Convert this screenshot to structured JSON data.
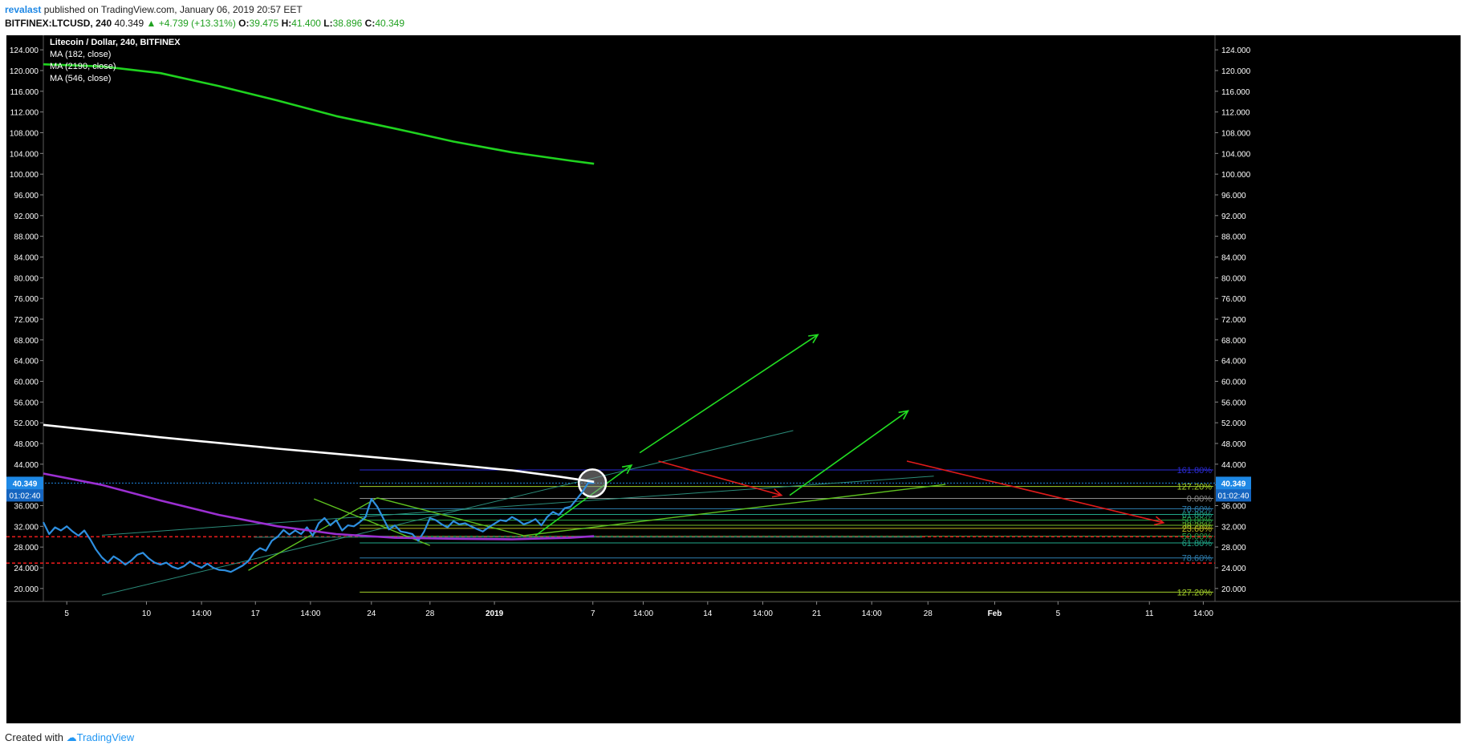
{
  "publish": {
    "username": "revalast",
    "rest": "published on TradingView.com, January 06, 2019 20:57 EET"
  },
  "ohlc": {
    "symbol": "BITFINEX:LTCUSD, 240",
    "last": "40.349",
    "change": "+4.739 (+13.31%)",
    "o_label": "O:",
    "o": "39.475",
    "h_label": "H:",
    "h": "41.400",
    "l_label": "L:",
    "l": "38.896",
    "c_label": "C:",
    "c": "40.349"
  },
  "legend": {
    "title": "Litecoin / Dollar, 240, BITFINEX",
    "studies": [
      "MA (182, close)",
      "MA (2190, close)",
      "MA (546, close)"
    ]
  },
  "footer": {
    "created_with": "Created with",
    "brand": "TradingView"
  },
  "colors": {
    "background": "#000000",
    "price": "#2e8fe0",
    "ma_green": "#1fd31f",
    "ma_white": "#ffffff",
    "ma_purple": "#9b2fd1",
    "arrow_green": "#22dd22",
    "arrow_red": "#e01b1b",
    "support_red": "#e01b1b",
    "last_price_badge": "#1e88e5"
  },
  "chart_data": {
    "type": "line",
    "title": "Litecoin / Dollar, 240, BITFINEX",
    "ylim": [
      17.5,
      126.5
    ],
    "y_ticks": [
      "124.000",
      "120.000",
      "116.000",
      "112.000",
      "108.000",
      "104.000",
      "100.000",
      "96.000",
      "92.000",
      "88.000",
      "84.000",
      "80.000",
      "76.000",
      "72.000",
      "68.000",
      "64.000",
      "60.000",
      "56.000",
      "52.000",
      "48.000",
      "44.000",
      "40.000",
      "36.000",
      "32.000",
      "28.000",
      "24.000",
      "20.000"
    ],
    "x_ticks": [
      "5",
      "10",
      "14:00",
      "17",
      "14:00",
      "24",
      "28",
      "2019",
      "7",
      "14:00",
      "14",
      "14:00",
      "21",
      "14:00",
      "28",
      "Feb",
      "5",
      "11",
      "14:00"
    ],
    "x_tick_pos": [
      0.02,
      0.088,
      0.135,
      0.181,
      0.228,
      0.28,
      0.33,
      0.385,
      0.469,
      0.512,
      0.567,
      0.614,
      0.66,
      0.707,
      0.755,
      0.812,
      0.866,
      0.944,
      0.99
    ],
    "last_price": "40.349",
    "countdown": "01:02:40",
    "series": [
      {
        "name": "Litecoin / Dollar",
        "kind": "price",
        "x": [
          0,
          0.005,
          0.01,
          0.015,
          0.02,
          0.025,
          0.03,
          0.035,
          0.04,
          0.045,
          0.05,
          0.055,
          0.06,
          0.065,
          0.07,
          0.075,
          0.08,
          0.085,
          0.09,
          0.095,
          0.1,
          0.105,
          0.11,
          0.115,
          0.12,
          0.125,
          0.13,
          0.135,
          0.14,
          0.145,
          0.15,
          0.155,
          0.16,
          0.165,
          0.17,
          0.175,
          0.18,
          0.185,
          0.19,
          0.195,
          0.2,
          0.205,
          0.21,
          0.215,
          0.22,
          0.225,
          0.23,
          0.235,
          0.24,
          0.245,
          0.25,
          0.255,
          0.26,
          0.265,
          0.27,
          0.275,
          0.28,
          0.285,
          0.29,
          0.295,
          0.3,
          0.305,
          0.31,
          0.315,
          0.32,
          0.325,
          0.33,
          0.335,
          0.34,
          0.345,
          0.35,
          0.355,
          0.36,
          0.365,
          0.37,
          0.375,
          0.38,
          0.385,
          0.39,
          0.395,
          0.4,
          0.405,
          0.41,
          0.415,
          0.42,
          0.425,
          0.43,
          0.435,
          0.44,
          0.445,
          0.45,
          0.455,
          0.46,
          0.465,
          0.47
        ],
        "y": [
          32.8,
          30.5,
          31.8,
          31.2,
          32.0,
          31.0,
          30.2,
          31.2,
          29.5,
          27.5,
          26.0,
          25.0,
          26.2,
          25.5,
          24.6,
          25.4,
          26.5,
          26.9,
          25.8,
          25.0,
          24.6,
          25.0,
          24.2,
          23.8,
          24.3,
          25.2,
          24.5,
          24.0,
          24.8,
          24.0,
          23.6,
          23.5,
          23.2,
          23.8,
          24.4,
          25.3,
          27.0,
          27.8,
          27.3,
          29.2,
          30.0,
          31.3,
          30.4,
          31.2,
          30.5,
          31.8,
          30.2,
          32.6,
          33.6,
          32.2,
          33.2,
          31.2,
          32.2,
          32.0,
          32.8,
          33.8,
          37.3,
          35.8,
          33.6,
          31.4,
          32.2,
          31.0,
          30.8,
          30.5,
          29.2,
          31.0,
          33.6,
          33.2,
          32.4,
          31.8,
          33.0,
          32.4,
          32.6,
          32.0,
          31.5,
          31.0,
          31.8,
          32.5,
          33.2,
          33.0,
          33.8,
          33.2,
          32.4,
          32.8,
          33.4,
          32.2,
          33.8,
          34.8,
          34.2,
          35.5,
          35.8,
          37.2,
          38.6,
          40.4,
          40.349
        ]
      },
      {
        "name": "MA (182, close)",
        "kind": "ma",
        "color": "#1fd31f",
        "x": [
          0,
          0.05,
          0.1,
          0.15,
          0.2,
          0.25,
          0.3,
          0.35,
          0.4,
          0.45,
          0.47
        ],
        "y": [
          121.2,
          120.8,
          119.5,
          117.0,
          114.2,
          111.2,
          108.8,
          106.3,
          104.2,
          102.6,
          102.0
        ]
      },
      {
        "name": "MA (2190, close)",
        "kind": "ma",
        "color": "#ffffff",
        "x": [
          0,
          0.1,
          0.2,
          0.3,
          0.4,
          0.44,
          0.47
        ],
        "y": [
          51.6,
          49.2,
          47.0,
          45.0,
          42.8,
          41.6,
          40.6
        ]
      },
      {
        "name": "MA (546, close)",
        "kind": "ma",
        "color": "#9b2fd1",
        "x": [
          0,
          0.05,
          0.1,
          0.15,
          0.2,
          0.25,
          0.3,
          0.35,
          0.4,
          0.45,
          0.47
        ],
        "y": [
          42.2,
          40.0,
          37.0,
          34.2,
          32.0,
          30.5,
          29.8,
          29.6,
          29.5,
          29.8,
          30.1
        ]
      }
    ],
    "fib_levels": [
      {
        "label": "161.80%",
        "value": 42.9,
        "color": "#2b2bd8"
      },
      {
        "label": "127.20%",
        "value": 39.7,
        "color": "#a3d12a"
      },
      {
        "label": "0.00%",
        "value": 37.4,
        "color": "#8c8c8c"
      },
      {
        "label": "78.60%",
        "value": 35.4,
        "color": "#2e7fb0"
      },
      {
        "label": "61.80%",
        "value": 34.3,
        "color": "#20a88a"
      },
      {
        "label": "50.00%",
        "value": 33.2,
        "color": "#2aa84a"
      },
      {
        "label": "38.20%",
        "value": 32.2,
        "color": "#78be2a"
      },
      {
        "label": "23.60%",
        "value": 31.6,
        "color": "#b8b820"
      },
      {
        "label": "50.00%",
        "value": 30.1,
        "color": "#2aa84a"
      },
      {
        "label": "61.80%",
        "value": 28.8,
        "color": "#20a88a"
      },
      {
        "label": "78.60%",
        "value": 25.9,
        "color": "#2e7fb0"
      },
      {
        "label": "127.20%",
        "value": 19.3,
        "color": "#a3d12a"
      }
    ],
    "support_levels": [
      30.0,
      24.9
    ]
  }
}
